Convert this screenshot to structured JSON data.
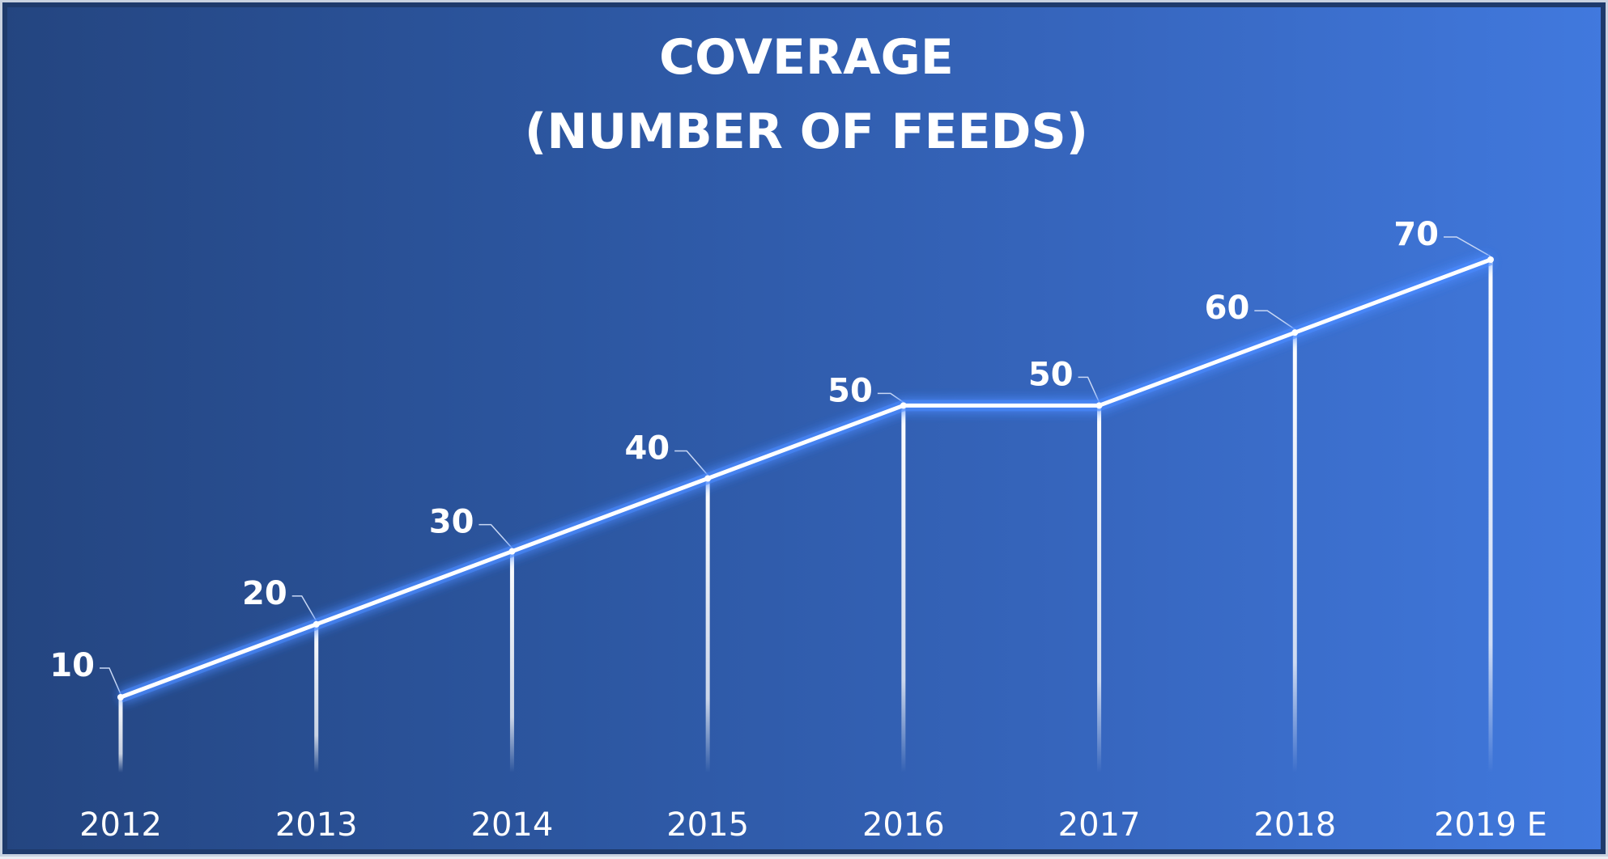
{
  "chart_data": {
    "type": "line",
    "title_lines": [
      "COVERAGE",
      "(NUMBER OF FEEDS)"
    ],
    "categories": [
      "2012",
      "2013",
      "2014",
      "2015",
      "2016",
      "2017",
      "2018",
      "2019 E"
    ],
    "values": [
      10,
      20,
      30,
      40,
      50,
      50,
      60,
      70
    ],
    "data_labels": [
      "10",
      "20",
      "30",
      "40",
      "50",
      "50",
      "60",
      "70"
    ],
    "xlabel": "",
    "ylabel": "",
    "ylim": [
      0,
      80
    ],
    "grid": false,
    "legend": "none",
    "drop_lines": true,
    "colors": {
      "line": "#ffffff",
      "glow": "#4b8bff",
      "background_start": "#244580",
      "background_end": "#4179de"
    }
  }
}
